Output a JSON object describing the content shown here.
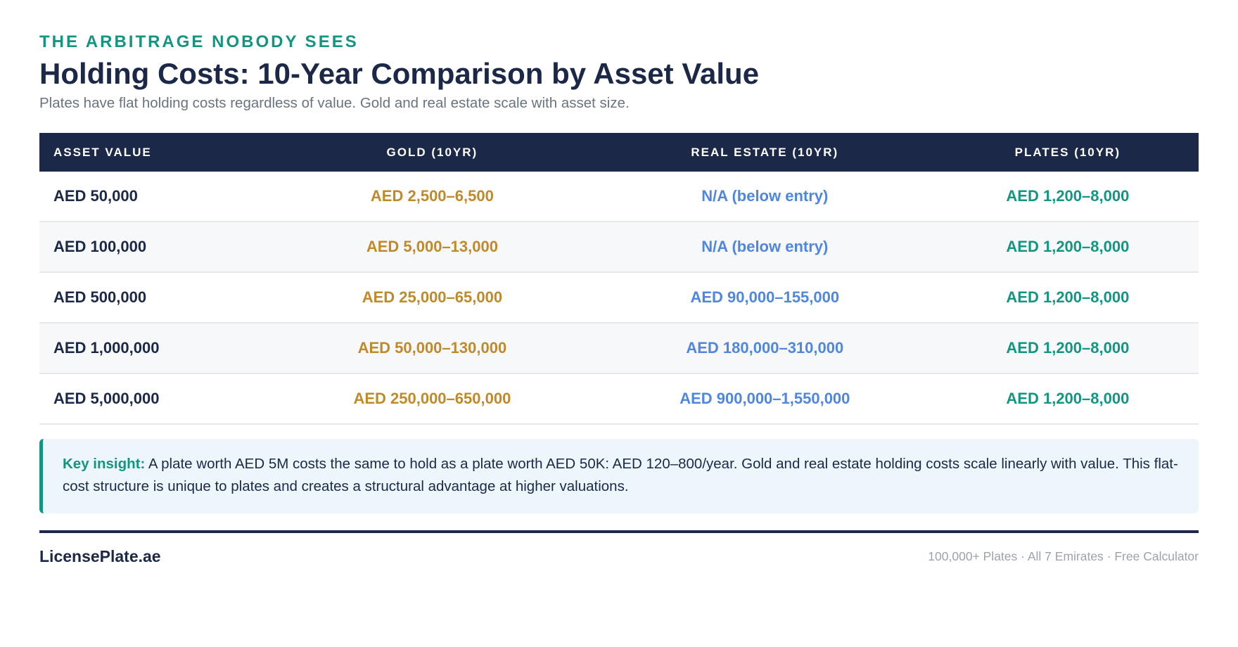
{
  "header": {
    "eyebrow": "THE ARBITRAGE NOBODY SEES",
    "title": "Holding Costs: 10-Year Comparison by Asset Value",
    "subtitle": "Plates have flat holding costs regardless of value. Gold and real estate scale with asset size."
  },
  "table": {
    "columns": [
      "ASSET VALUE",
      "GOLD (10YR)",
      "REAL ESTATE (10YR)",
      "PLATES (10YR)"
    ],
    "rows": [
      [
        "AED 50,000",
        "AED 2,500–6,500",
        "N/A (below entry)",
        "AED 1,200–8,000"
      ],
      [
        "AED 100,000",
        "AED 5,000–13,000",
        "N/A (below entry)",
        "AED 1,200–8,000"
      ],
      [
        "AED 500,000",
        "AED 25,000–65,000",
        "AED 90,000–155,000",
        "AED 1,200–8,000"
      ],
      [
        "AED 1,000,000",
        "AED 50,000–130,000",
        "AED 180,000–310,000",
        "AED 1,200–8,000"
      ],
      [
        "AED 5,000,000",
        "AED 250,000–650,000",
        "AED 900,000–1,550,000",
        "AED 1,200–8,000"
      ]
    ]
  },
  "insight": {
    "label": "Key insight:",
    "text": " A plate worth AED 5M costs the same to hold as a plate worth AED 50K: AED 120–800/year. Gold and real estate holding costs scale linearly with value. This flat-cost structure is unique to plates and creates a structural advantage at higher valuations."
  },
  "footer": {
    "brand": "LicensePlate.ae",
    "meta": "100,000+ Plates · All 7 Emirates · Free Calculator"
  },
  "colors": {
    "navy": "#1b2847",
    "teal": "#139581",
    "gold": "#c0892a",
    "blue": "#4f86e0"
  }
}
